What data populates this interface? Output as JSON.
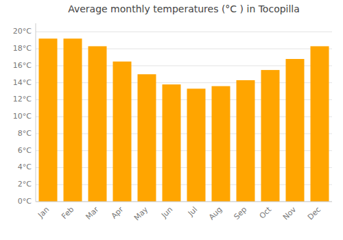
{
  "chart_data": {
    "type": "bar",
    "title": "Average monthly temperatures (°C ) in Tocopilla",
    "categories": [
      "Jan",
      "Feb",
      "Mar",
      "Apr",
      "May",
      "Jun",
      "Jul",
      "Aug",
      "Sep",
      "Oct",
      "Nov",
      "Dec"
    ],
    "values": [
      19.2,
      19.2,
      18.3,
      16.5,
      15.0,
      13.8,
      13.3,
      13.6,
      14.3,
      15.5,
      16.8,
      18.3
    ],
    "color": "#FFA500",
    "ylim": [
      0,
      21
    ],
    "yticks": [
      {
        "value": 0,
        "label": "0°C"
      },
      {
        "value": 2,
        "label": "2°C"
      },
      {
        "value": 4,
        "label": "4°C"
      },
      {
        "value": 6,
        "label": "6°C"
      },
      {
        "value": 8,
        "label": "8°C"
      },
      {
        "value": 10,
        "label": "10°C"
      },
      {
        "value": 12,
        "label": "12°C"
      },
      {
        "value": 14,
        "label": "14°C"
      },
      {
        "value": 16,
        "label": "16°C"
      },
      {
        "value": 18,
        "label": "18°C"
      },
      {
        "value": 20,
        "label": "20°C"
      }
    ],
    "grid": true
  }
}
